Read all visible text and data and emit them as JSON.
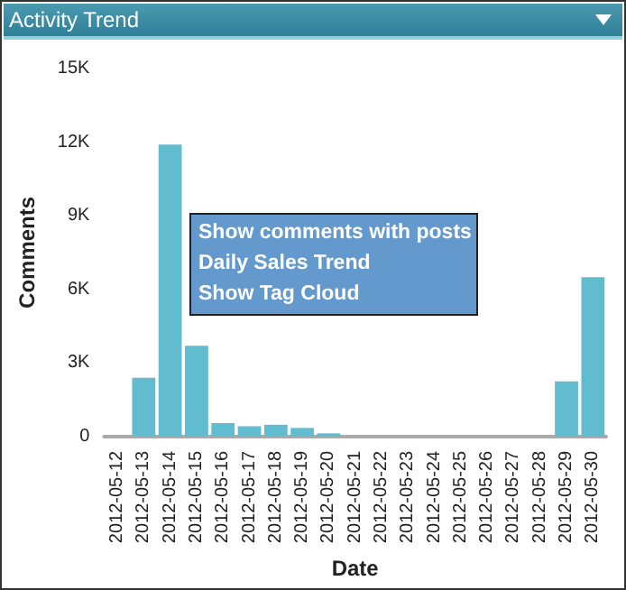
{
  "chart_data": {
    "type": "bar",
    "title": "Activity Trend",
    "xlabel": "Date",
    "ylabel": "Comments",
    "categories": [
      "2012-05-12",
      "2012-05-13",
      "2012-05-14",
      "2012-05-15",
      "2012-05-16",
      "2012-05-17",
      "2012-05-18",
      "2012-05-19",
      "2012-05-20",
      "2012-05-21",
      "2012-05-22",
      "2012-05-23",
      "2012-05-24",
      "2012-05-25",
      "2012-05-26",
      "2012-05-27",
      "2012-05-28",
      "2012-05-29",
      "2012-05-30"
    ],
    "values": [
      0,
      2400,
      11900,
      3700,
      550,
      420,
      480,
      350,
      130,
      0,
      0,
      0,
      0,
      0,
      0,
      0,
      0,
      2250,
      6500
    ],
    "color": "#62bcd0",
    "ylim": [
      0,
      15000
    ],
    "yticks": [
      {
        "value": 0,
        "label": "0"
      },
      {
        "value": 3000,
        "label": "3K"
      },
      {
        "value": 6000,
        "label": "6K"
      },
      {
        "value": 9000,
        "label": "9K"
      },
      {
        "value": 12000,
        "label": "12K"
      },
      {
        "value": 15000,
        "label": "15K"
      }
    ],
    "grid": false,
    "annotations": [
      "Show comments with posts",
      "Daily Sales Trend",
      "Show Tag Cloud"
    ]
  }
}
